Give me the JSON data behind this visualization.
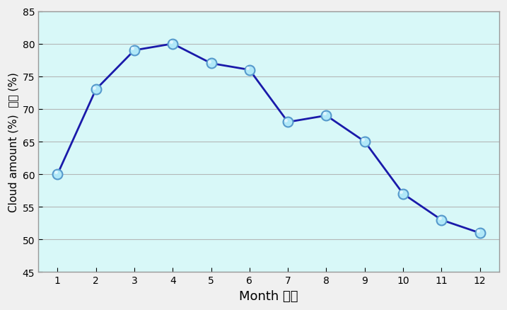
{
  "months": [
    1,
    2,
    3,
    4,
    5,
    6,
    7,
    8,
    9,
    10,
    11,
    12
  ],
  "values": [
    60,
    73,
    79,
    80,
    77,
    76,
    68,
    69,
    65,
    57,
    53,
    51
  ],
  "xlabel": "Month 月份",
  "ylabel": "Cloud amount (%)  雲量 (%)",
  "ylim": [
    45,
    85
  ],
  "yticks": [
    45,
    50,
    55,
    60,
    65,
    70,
    75,
    80,
    85
  ],
  "xlim": [
    0.5,
    12.5
  ],
  "xticks": [
    1,
    2,
    3,
    4,
    5,
    6,
    7,
    8,
    9,
    10,
    11,
    12
  ],
  "line_color": "#1a1aaa",
  "marker_face_color": "#b0e8f8",
  "marker_edge_color": "#5599cc",
  "marker_highlight": "#e8f8ff",
  "fig_bg_color": "#f0f0f0",
  "plot_bg_color": "#d8f8f8",
  "grid_color": "#b0b0b0",
  "spine_color": "#999999",
  "xlabel_fontsize": 13,
  "ylabel_fontsize": 11,
  "tick_fontsize": 10
}
